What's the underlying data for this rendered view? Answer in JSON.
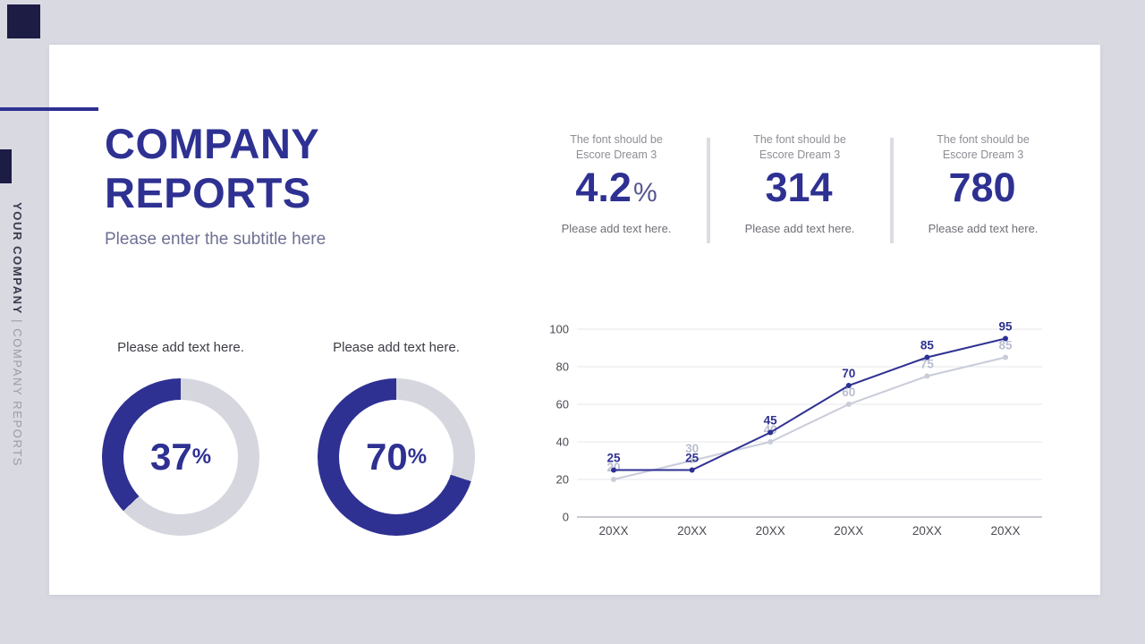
{
  "page": {
    "bg": "#d9d9e2",
    "accent": "#2e3192",
    "dark_square": "#1c1c44"
  },
  "sidebar": {
    "company": "YOUR COMPANY",
    "separator": " | ",
    "section": "COMPANY REPORTS"
  },
  "header": {
    "title_line1": "COMPANY",
    "title_line2": "REPORTS",
    "subtitle": "Please enter the subtitle here"
  },
  "stats": {
    "items": [
      {
        "note_line1": "The font should be",
        "note_line2": "Escore Dream 3",
        "value": "4.2",
        "unit": "%",
        "caption": "Please add text here."
      },
      {
        "note_line1": "The font should be",
        "note_line2": "Escore Dream 3",
        "value": "314",
        "unit": "",
        "caption": "Please add text here."
      },
      {
        "note_line1": "The font should be",
        "note_line2": "Escore Dream 3",
        "value": "780",
        "unit": "",
        "caption": "Please add text here."
      }
    ]
  },
  "chart_data": [
    {
      "type": "donut",
      "title": "Please add text here.",
      "value": 37,
      "unit": "%",
      "max": 100,
      "colors": {
        "fill": "#2e3192",
        "track": "#d6d6de"
      }
    },
    {
      "type": "donut",
      "title": "Please add text here.",
      "value": 70,
      "unit": "%",
      "max": 100,
      "colors": {
        "fill": "#2e3192",
        "track": "#d6d6de"
      }
    },
    {
      "type": "line",
      "categories": [
        "20XX",
        "20XX",
        "20XX",
        "20XX",
        "20XX",
        "20XX"
      ],
      "series": [
        {
          "name": "primary",
          "color": "#2e3192",
          "label_color": "#2e3192",
          "values": [
            25,
            25,
            45,
            70,
            85,
            95
          ]
        },
        {
          "name": "secondary",
          "color": "#c9ccd9",
          "label_color": "#b9bdd0",
          "values": [
            20,
            30,
            40,
            60,
            75,
            85
          ]
        }
      ],
      "ylim": [
        0,
        100
      ],
      "yticks": [
        0,
        20,
        40,
        60,
        80,
        100
      ],
      "grid": true,
      "legend": "none"
    }
  ]
}
